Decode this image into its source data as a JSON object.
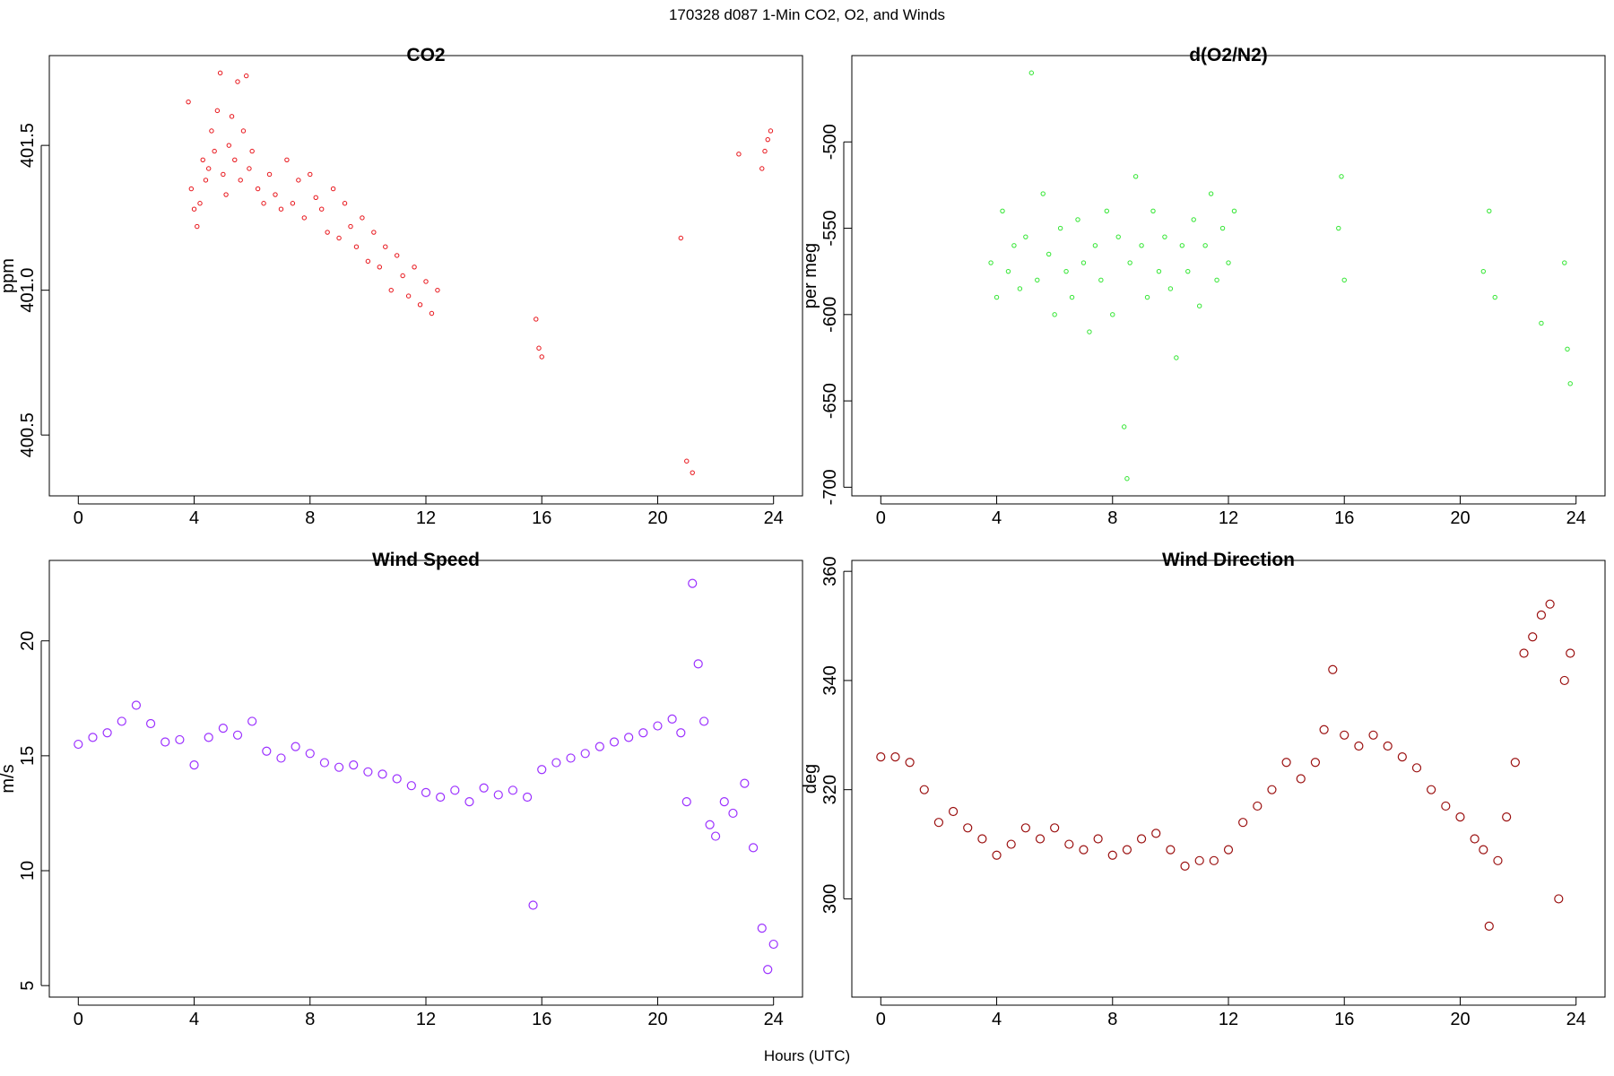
{
  "page": {
    "title": "170328   d087   1-Min CO2, O2, and Winds",
    "xlabel": "Hours (UTC)"
  },
  "chart_data": [
    {
      "type": "scatter",
      "title": "CO2",
      "xlabel": "",
      "ylabel": "ppm",
      "xlim": [
        -1,
        25
      ],
      "ylim": [
        400.29,
        401.81
      ],
      "xticks": [
        0,
        4,
        8,
        12,
        16,
        20,
        24
      ],
      "yticks": [
        400.5,
        401.0,
        401.5
      ],
      "ytick_labels": [
        "400.5",
        "401.0",
        "401.5"
      ],
      "color": "#e8141a",
      "marker_size": "small",
      "series": [
        {
          "x": [
            3.8,
            3.9,
            4.0,
            4.1,
            4.2,
            4.3,
            4.4,
            4.5,
            4.6,
            4.7,
            4.8,
            4.9,
            5.0,
            5.1,
            5.2,
            5.3,
            5.4,
            5.5,
            5.6,
            5.7,
            5.8,
            5.9,
            6.0,
            6.2,
            6.4,
            6.6,
            6.8,
            7.0,
            7.2,
            7.4,
            7.6,
            7.8,
            8.0,
            8.2,
            8.4,
            8.6,
            8.8,
            9.0,
            9.2,
            9.4,
            9.6,
            9.8,
            10.0,
            10.2,
            10.4,
            10.6,
            10.8,
            11.0,
            11.2,
            11.4,
            11.6,
            11.8,
            12.0,
            12.2,
            12.4,
            15.8,
            15.9,
            16.0,
            20.8,
            21.0,
            21.2,
            22.8,
            23.6,
            23.7,
            23.8,
            23.9
          ],
          "y": [
            401.65,
            401.35,
            401.28,
            401.22,
            401.3,
            401.45,
            401.38,
            401.42,
            401.55,
            401.48,
            401.62,
            401.75,
            401.4,
            401.33,
            401.5,
            401.6,
            401.45,
            401.72,
            401.38,
            401.55,
            401.74,
            401.42,
            401.48,
            401.35,
            401.3,
            401.4,
            401.33,
            401.28,
            401.45,
            401.3,
            401.38,
            401.25,
            401.4,
            401.32,
            401.28,
            401.2,
            401.35,
            401.18,
            401.3,
            401.22,
            401.15,
            401.25,
            401.1,
            401.2,
            401.08,
            401.15,
            401.0,
            401.12,
            401.05,
            400.98,
            401.08,
            400.95,
            401.03,
            400.92,
            401.0,
            400.9,
            400.8,
            400.77,
            401.18,
            400.41,
            400.37,
            401.47,
            401.42,
            401.48,
            401.52,
            401.55
          ]
        }
      ]
    },
    {
      "type": "scatter",
      "title": "d(O2/N2)",
      "xlabel": "",
      "ylabel": "per meg",
      "xlim": [
        -1,
        25
      ],
      "ylim": [
        -705,
        -450
      ],
      "xticks": [
        0,
        4,
        8,
        12,
        16,
        20,
        24
      ],
      "yticks": [
        -700,
        -650,
        -600,
        -550,
        -500
      ],
      "ytick_labels": [
        "-700",
        "-650",
        "-600",
        "-550",
        "-500"
      ],
      "color": "#33e633",
      "marker_size": "small",
      "series": [
        {
          "x": [
            3.8,
            4.0,
            4.2,
            4.4,
            4.6,
            4.8,
            5.0,
            5.2,
            5.4,
            5.6,
            5.8,
            6.0,
            6.2,
            6.4,
            6.6,
            6.8,
            7.0,
            7.2,
            7.4,
            7.6,
            7.8,
            8.0,
            8.2,
            8.4,
            8.5,
            8.6,
            8.8,
            9.0,
            9.2,
            9.4,
            9.6,
            9.8,
            10.0,
            10.2,
            10.4,
            10.6,
            10.8,
            11.0,
            11.2,
            11.4,
            11.6,
            11.8,
            12.0,
            12.2,
            15.8,
            15.9,
            16.0,
            20.8,
            21.0,
            21.2,
            22.8,
            23.6,
            23.7,
            23.8
          ],
          "y": [
            -570,
            -590,
            -540,
            -575,
            -560,
            -585,
            -555,
            -460,
            -580,
            -530,
            -565,
            -600,
            -550,
            -575,
            -590,
            -545,
            -570,
            -610,
            -560,
            -580,
            -540,
            -600,
            -555,
            -665,
            -695,
            -570,
            -520,
            -560,
            -590,
            -540,
            -575,
            -555,
            -585,
            -625,
            -560,
            -575,
            -545,
            -595,
            -560,
            -530,
            -580,
            -550,
            -570,
            -540,
            -550,
            -520,
            -580,
            -575,
            -540,
            -590,
            -605,
            -570,
            -620,
            -640
          ]
        }
      ]
    },
    {
      "type": "scatter",
      "title": "Wind Speed",
      "xlabel": "",
      "ylabel": "m/s",
      "xlim": [
        -1,
        25
      ],
      "ylim": [
        4.5,
        23.5
      ],
      "xticks": [
        0,
        4,
        8,
        12,
        16,
        20,
        24
      ],
      "yticks": [
        5,
        10,
        15,
        20
      ],
      "ytick_labels": [
        "5",
        "10",
        "15",
        "20"
      ],
      "color": "#9b30ff",
      "marker_size": "large",
      "series": [
        {
          "x": [
            0,
            0.5,
            1,
            1.5,
            2,
            2.5,
            3,
            3.5,
            4,
            4.5,
            5,
            5.5,
            6,
            6.5,
            7,
            7.5,
            8,
            8.5,
            9,
            9.5,
            10,
            10.5,
            11,
            11.5,
            12,
            12.5,
            13,
            13.5,
            14,
            14.5,
            15,
            15.5,
            15.7,
            16,
            16.5,
            17,
            17.5,
            18,
            18.5,
            19,
            19.5,
            20,
            20.5,
            20.8,
            21.0,
            21.2,
            21.4,
            21.6,
            21.8,
            22.0,
            22.3,
            22.6,
            23.0,
            23.3,
            23.6,
            23.8,
            24.0
          ],
          "y": [
            15.5,
            15.8,
            16.0,
            16.5,
            17.2,
            16.4,
            15.6,
            15.7,
            14.6,
            15.8,
            16.2,
            15.9,
            16.5,
            15.2,
            14.9,
            15.4,
            15.1,
            14.7,
            14.5,
            14.6,
            14.3,
            14.2,
            14.0,
            13.7,
            13.4,
            13.2,
            13.5,
            13.0,
            13.6,
            13.3,
            13.5,
            13.2,
            8.5,
            14.4,
            14.7,
            14.9,
            15.1,
            15.4,
            15.6,
            15.8,
            16.0,
            16.3,
            16.6,
            16.0,
            13.0,
            22.5,
            19.0,
            16.5,
            12.0,
            11.5,
            13.0,
            12.5,
            13.8,
            11.0,
            7.5,
            5.7,
            6.8
          ]
        }
      ]
    },
    {
      "type": "scatter",
      "title": "Wind Direction",
      "xlabel": "",
      "ylabel": "deg",
      "xlim": [
        -1,
        25
      ],
      "ylim": [
        282,
        362
      ],
      "xticks": [
        0,
        4,
        8,
        12,
        16,
        20,
        24
      ],
      "yticks": [
        300,
        320,
        340,
        360
      ],
      "ytick_labels": [
        "300",
        "320",
        "340",
        "360"
      ],
      "color": "#9b1010",
      "marker_size": "large",
      "series": [
        {
          "x": [
            0,
            0.5,
            1,
            1.5,
            2,
            2.5,
            3,
            3.5,
            4,
            4.5,
            5,
            5.5,
            6,
            6.5,
            7,
            7.5,
            8,
            8.5,
            9,
            9.5,
            10,
            10.5,
            11,
            11.5,
            12,
            12.5,
            13,
            13.5,
            14,
            14.5,
            15,
            15.3,
            15.6,
            16,
            16.5,
            17,
            17.5,
            18,
            18.5,
            19,
            19.5,
            20,
            20.5,
            20.8,
            21.0,
            21.3,
            21.6,
            21.9,
            22.2,
            22.5,
            22.8,
            23.1,
            23.4,
            23.6,
            23.8
          ],
          "y": [
            326,
            326,
            325,
            320,
            314,
            316,
            313,
            311,
            308,
            310,
            313,
            311,
            313,
            310,
            309,
            311,
            308,
            309,
            311,
            312,
            309,
            306,
            307,
            307,
            309,
            314,
            317,
            320,
            325,
            322,
            325,
            331,
            342,
            330,
            328,
            330,
            328,
            326,
            324,
            320,
            317,
            315,
            311,
            309,
            295,
            307,
            315,
            325,
            345,
            348,
            352,
            354,
            300,
            340,
            345
          ]
        }
      ]
    }
  ]
}
